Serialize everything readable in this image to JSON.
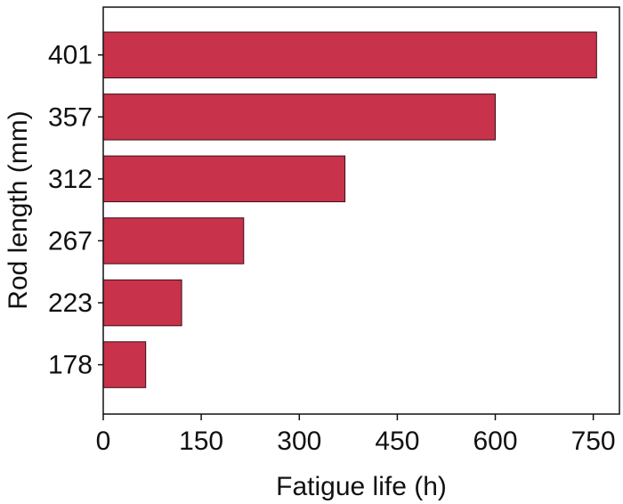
{
  "chart_data": {
    "type": "bar",
    "orientation": "horizontal",
    "categories": [
      "178",
      "223",
      "267",
      "312",
      "357",
      "401"
    ],
    "values": [
      65,
      120,
      215,
      370,
      600,
      755
    ],
    "xlabel": "Fatigue life (h)",
    "ylabel": "Rod length (mm)",
    "xlim": [
      0,
      790
    ],
    "xticks": [
      "0",
      "150",
      "300",
      "450",
      "600",
      "750"
    ],
    "xtick_values": [
      0,
      150,
      300,
      450,
      600,
      750
    ],
    "grid": false,
    "legend": "none",
    "colors": {
      "bar_fill": "#c8324b",
      "bar_stroke": "#3a1018",
      "axis": "#111111"
    }
  }
}
